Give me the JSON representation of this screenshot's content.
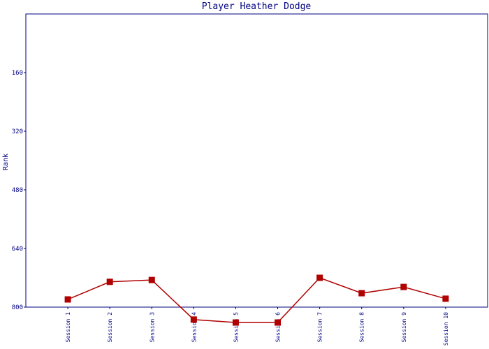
{
  "chart_data": {
    "type": "line",
    "title": "Player Heather Dodge",
    "y_label": "Rank",
    "categories": [
      "Session 1",
      "Session 2",
      "Session 3",
      "Session 4",
      "Session 5",
      "Session 6",
      "Session 7",
      "Session 8",
      "Session 9",
      "Session 10"
    ],
    "series": [
      {
        "name": "Rank",
        "color": "#b00000",
        "values": [
          779,
          731,
          726,
          834,
          842,
          842,
          720,
          762,
          745,
          777
        ]
      }
    ],
    "ylim": [
      800,
      0
    ],
    "yticks": [
      160,
      320,
      480,
      640,
      800
    ],
    "grid": false
  }
}
